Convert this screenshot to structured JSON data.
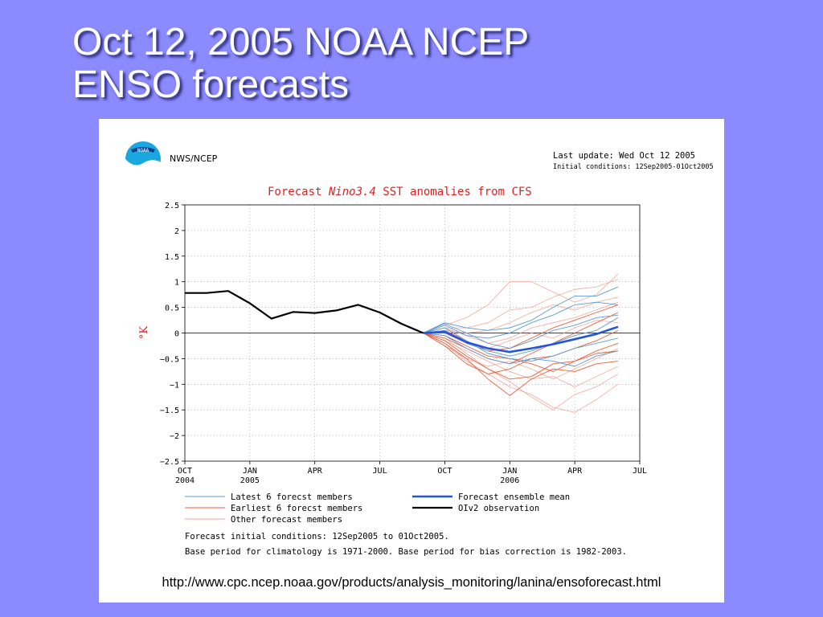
{
  "slide": {
    "title_line1": "Oct 12, 2005 NOAA NCEP",
    "title_line2": "ENSO forecasts",
    "url": "http://www.cpc.ncep.noaa.gov/products/analysis_monitoring/lanina/ensoforecast.html"
  },
  "header": {
    "logo_text": "NOAA",
    "agency": "NWS/NCEP",
    "last_update": "Last update: Wed Oct 12 2005",
    "initial_conditions": "Initial conditions: 12Sep2005-01Oct2005"
  },
  "footnotes": {
    "line1": "Forecast initial conditions: 12Sep2005 to 01Oct2005.",
    "line2": "Base period for climatology is 1971-2000. Base period for bias correction is 1982-2003."
  },
  "colors": {
    "background": "#8b8bff",
    "title_red": "#e02020",
    "latest": "#5b9bd5",
    "earliest": "#e8603c",
    "other": "#f0a090",
    "mean": "#2255dd",
    "observation": "#000000"
  },
  "chart_data": {
    "type": "line",
    "title_prefix": "Forecast ",
    "title_italic": "Nino3.4",
    "title_suffix": " SST anomalies from CFS",
    "ylabel": "°K",
    "ylim": [
      -2.5,
      2.5
    ],
    "yticks": [
      "2.5",
      "2",
      "1.5",
      "1",
      "0.5",
      "0",
      "-0.5",
      "-1",
      "-1.5",
      "-2",
      "-2.5"
    ],
    "xlim": [
      "2004-10",
      "2006-07"
    ],
    "xticks": [
      {
        "month": "2004-10",
        "label1": "OCT",
        "label2": "2004"
      },
      {
        "month": "2005-01",
        "label1": "JAN",
        "label2": "2005"
      },
      {
        "month": "2005-04",
        "label1": "APR",
        "label2": ""
      },
      {
        "month": "2005-07",
        "label1": "JUL",
        "label2": ""
      },
      {
        "month": "2005-10",
        "label1": "OCT",
        "label2": ""
      },
      {
        "month": "2006-01",
        "label1": "JAN",
        "label2": "2006"
      },
      {
        "month": "2006-04",
        "label1": "APR",
        "label2": ""
      },
      {
        "month": "2006-07",
        "label1": "JUL",
        "label2": ""
      }
    ],
    "grid": true,
    "legend": [
      {
        "label": "Latest 6 forecst members",
        "key": "latest"
      },
      {
        "label": "Earliest 6 forecst members",
        "key": "earliest"
      },
      {
        "label": "Other forecast members",
        "key": "other"
      },
      {
        "label": "Forecast ensemble mean",
        "key": "mean"
      },
      {
        "label": "OIv2 observation",
        "key": "observation"
      }
    ],
    "x": [
      "2006-01",
      "2006-02",
      "2006-03",
      "2006-04",
      "2006-05",
      "2006-06"
    ],
    "series": [
      {
        "name": "OIv2 observation",
        "key": "observation",
        "x": [
          "2004-10",
          "2004-11",
          "2004-12",
          "2005-01",
          "2005-02",
          "2005-03",
          "2005-04",
          "2005-05",
          "2005-06",
          "2005-07",
          "2005-08",
          "2005-09",
          "2005-10"
        ],
        "values": [
          0.78,
          0.78,
          0.82,
          0.58,
          0.28,
          0.41,
          0.39,
          0.44,
          0.55,
          0.4,
          0.18,
          0.0,
          null
        ]
      },
      {
        "name": "Forecast ensemble mean",
        "key": "mean",
        "x": [
          "2005-09",
          "2005-10",
          "2005-11",
          "2005-12",
          "2006-01",
          "2006-02",
          "2006-03",
          "2006-04",
          "2006-05",
          "2006-06"
        ],
        "values": [
          0.0,
          0.02,
          -0.18,
          -0.3,
          -0.37,
          -0.3,
          -0.22,
          -0.12,
          -0.02,
          0.12
        ]
      },
      {
        "key": "latest",
        "x": [
          "2005-09",
          "2005-10",
          "2005-11",
          "2005-12",
          "2006-01",
          "2006-02",
          "2006-03",
          "2006-04",
          "2006-05",
          "2006-06"
        ],
        "values": [
          0.0,
          0.2,
          0.1,
          0.05,
          0.1,
          0.25,
          0.5,
          0.72,
          0.72,
          0.9
        ]
      },
      {
        "key": "latest",
        "x": [
          "2005-09",
          "2005-10",
          "2005-11",
          "2005-12",
          "2006-01",
          "2006-02",
          "2006-03",
          "2006-04",
          "2006-05",
          "2006-06"
        ],
        "values": [
          0.0,
          0.15,
          -0.05,
          -0.1,
          0.0,
          0.2,
          0.35,
          0.55,
          0.6,
          0.55
        ]
      },
      {
        "key": "latest",
        "x": [
          "2005-09",
          "2005-10",
          "2005-11",
          "2005-12",
          "2006-01",
          "2006-02",
          "2006-03",
          "2006-04",
          "2006-05",
          "2006-06"
        ],
        "values": [
          0.0,
          0.05,
          -0.2,
          -0.35,
          -0.45,
          -0.35,
          -0.2,
          -0.05,
          0.05,
          0.3
        ]
      },
      {
        "key": "latest",
        "x": [
          "2005-09",
          "2005-10",
          "2005-11",
          "2005-12",
          "2006-01",
          "2006-02",
          "2006-03",
          "2006-04",
          "2006-05",
          "2006-06"
        ],
        "values": [
          0.0,
          0.1,
          -0.15,
          -0.4,
          -0.5,
          -0.55,
          -0.45,
          -0.3,
          -0.2,
          -0.1
        ]
      },
      {
        "key": "latest",
        "x": [
          "2005-09",
          "2005-10",
          "2005-11",
          "2005-12",
          "2006-01",
          "2006-02",
          "2006-03",
          "2006-04",
          "2006-05",
          "2006-06"
        ],
        "values": [
          0.0,
          -0.05,
          -0.3,
          -0.5,
          -0.6,
          -0.5,
          -0.55,
          -0.65,
          -0.45,
          -0.35
        ]
      },
      {
        "key": "latest",
        "x": [
          "2005-09",
          "2005-10",
          "2005-11",
          "2005-12",
          "2006-01",
          "2006-02",
          "2006-03",
          "2006-04",
          "2006-05",
          "2006-06"
        ],
        "values": [
          0.0,
          0.18,
          0.0,
          -0.2,
          -0.3,
          -0.15,
          0.05,
          0.15,
          0.3,
          0.35
        ]
      },
      {
        "key": "earliest",
        "x": [
          "2005-09",
          "2005-10",
          "2005-11",
          "2005-12",
          "2006-01",
          "2006-02",
          "2006-03",
          "2006-04",
          "2006-05",
          "2006-06"
        ],
        "values": [
          0.0,
          -0.2,
          -0.5,
          -0.9,
          -1.22,
          -0.9,
          -0.7,
          -0.75,
          -0.6,
          -0.55
        ]
      },
      {
        "key": "earliest",
        "x": [
          "2005-09",
          "2005-10",
          "2005-11",
          "2005-12",
          "2006-01",
          "2006-02",
          "2006-03",
          "2006-04",
          "2006-05",
          "2006-06"
        ],
        "values": [
          0.0,
          -0.15,
          -0.45,
          -0.7,
          -0.9,
          -0.85,
          -0.6,
          -0.55,
          -0.4,
          -0.35
        ]
      },
      {
        "key": "earliest",
        "x": [
          "2005-09",
          "2005-10",
          "2005-11",
          "2005-12",
          "2006-01",
          "2006-02",
          "2006-03",
          "2006-04",
          "2006-05",
          "2006-06"
        ],
        "values": [
          0.0,
          -0.1,
          -0.3,
          -0.5,
          -0.6,
          -0.4,
          -0.2,
          0.0,
          0.2,
          0.4
        ]
      },
      {
        "key": "earliest",
        "x": [
          "2005-09",
          "2005-10",
          "2005-11",
          "2005-12",
          "2006-01",
          "2006-02",
          "2006-03",
          "2006-04",
          "2006-05",
          "2006-06"
        ],
        "values": [
          0.0,
          0.05,
          -0.15,
          -0.35,
          -0.3,
          -0.1,
          0.1,
          0.25,
          0.4,
          0.55
        ]
      },
      {
        "key": "earliest",
        "x": [
          "2005-09",
          "2005-10",
          "2005-11",
          "2005-12",
          "2006-01",
          "2006-02",
          "2006-03",
          "2006-04",
          "2006-05",
          "2006-06"
        ],
        "values": [
          0.0,
          -0.25,
          -0.6,
          -0.8,
          -0.7,
          -0.5,
          -0.45,
          -0.3,
          -0.15,
          0.05
        ]
      },
      {
        "key": "earliest",
        "x": [
          "2005-09",
          "2005-10",
          "2005-11",
          "2005-12",
          "2006-01",
          "2006-02",
          "2006-03",
          "2006-04",
          "2006-05",
          "2006-06"
        ],
        "values": [
          0.0,
          -0.05,
          -0.25,
          -0.45,
          -0.5,
          -0.6,
          -0.75,
          -0.55,
          -0.35,
          -0.2
        ]
      },
      {
        "key": "other",
        "x": [
          "2005-09",
          "2005-10",
          "2005-11",
          "2005-12",
          "2006-01",
          "2006-02",
          "2006-03",
          "2006-04",
          "2006-05",
          "2006-06"
        ],
        "values": [
          0.0,
          0.15,
          0.3,
          0.55,
          1.0,
          1.0,
          0.8,
          0.6,
          0.75,
          1.15
        ]
      },
      {
        "key": "other",
        "x": [
          "2005-09",
          "2005-10",
          "2005-11",
          "2005-12",
          "2006-01",
          "2006-02",
          "2006-03",
          "2006-04",
          "2006-05",
          "2006-06"
        ],
        "values": [
          0.0,
          0.1,
          0.1,
          0.2,
          0.45,
          0.5,
          0.7,
          0.85,
          0.9,
          1.05
        ]
      },
      {
        "key": "other",
        "x": [
          "2005-09",
          "2005-10",
          "2005-11",
          "2005-12",
          "2006-01",
          "2006-02",
          "2006-03",
          "2006-04",
          "2006-05",
          "2006-06"
        ],
        "values": [
          0.0,
          -0.2,
          -0.55,
          -0.8,
          -1.05,
          -1.2,
          -1.45,
          -1.55,
          -1.3,
          -1.0
        ]
      },
      {
        "key": "other",
        "x": [
          "2005-09",
          "2005-10",
          "2005-11",
          "2005-12",
          "2006-01",
          "2006-02",
          "2006-03",
          "2006-04",
          "2006-05",
          "2006-06"
        ],
        "values": [
          0.0,
          -0.1,
          -0.4,
          -0.7,
          -0.95,
          -1.25,
          -1.5,
          -1.2,
          -1.05,
          -0.8
        ]
      },
      {
        "key": "other",
        "x": [
          "2005-09",
          "2005-10",
          "2005-11",
          "2005-12",
          "2006-01",
          "2006-02",
          "2006-03",
          "2006-04",
          "2006-05",
          "2006-06"
        ],
        "values": [
          0.0,
          0.05,
          0.0,
          0.05,
          0.2,
          0.4,
          0.55,
          0.45,
          0.6,
          0.7
        ]
      },
      {
        "key": "other",
        "x": [
          "2005-09",
          "2005-10",
          "2005-11",
          "2005-12",
          "2006-01",
          "2006-02",
          "2006-03",
          "2006-04",
          "2006-05",
          "2006-06"
        ],
        "values": [
          0.0,
          -0.15,
          -0.35,
          -0.55,
          -0.75,
          -0.9,
          -0.85,
          -1.05,
          -0.85,
          -0.65
        ]
      },
      {
        "key": "other",
        "x": [
          "2005-09",
          "2005-10",
          "2005-11",
          "2005-12",
          "2006-01",
          "2006-02",
          "2006-03",
          "2006-04",
          "2006-05",
          "2006-06"
        ],
        "values": [
          0.0,
          0.1,
          -0.05,
          -0.2,
          -0.1,
          0.1,
          0.2,
          0.3,
          0.45,
          0.6
        ]
      },
      {
        "key": "other",
        "x": [
          "2005-09",
          "2005-10",
          "2005-11",
          "2005-12",
          "2006-01",
          "2006-02",
          "2006-03",
          "2006-04",
          "2006-05",
          "2006-06"
        ],
        "values": [
          0.0,
          -0.25,
          -0.5,
          -0.65,
          -0.55,
          -0.7,
          -0.9,
          -0.7,
          -0.5,
          -0.3
        ]
      },
      {
        "key": "other",
        "x": [
          "2005-09",
          "2005-10",
          "2005-11",
          "2005-12",
          "2006-01",
          "2006-02",
          "2006-03",
          "2006-04",
          "2006-05",
          "2006-06"
        ],
        "values": [
          0.0,
          0.0,
          -0.2,
          -0.3,
          -0.15,
          0.0,
          -0.1,
          0.1,
          0.25,
          0.2
        ]
      }
    ]
  }
}
